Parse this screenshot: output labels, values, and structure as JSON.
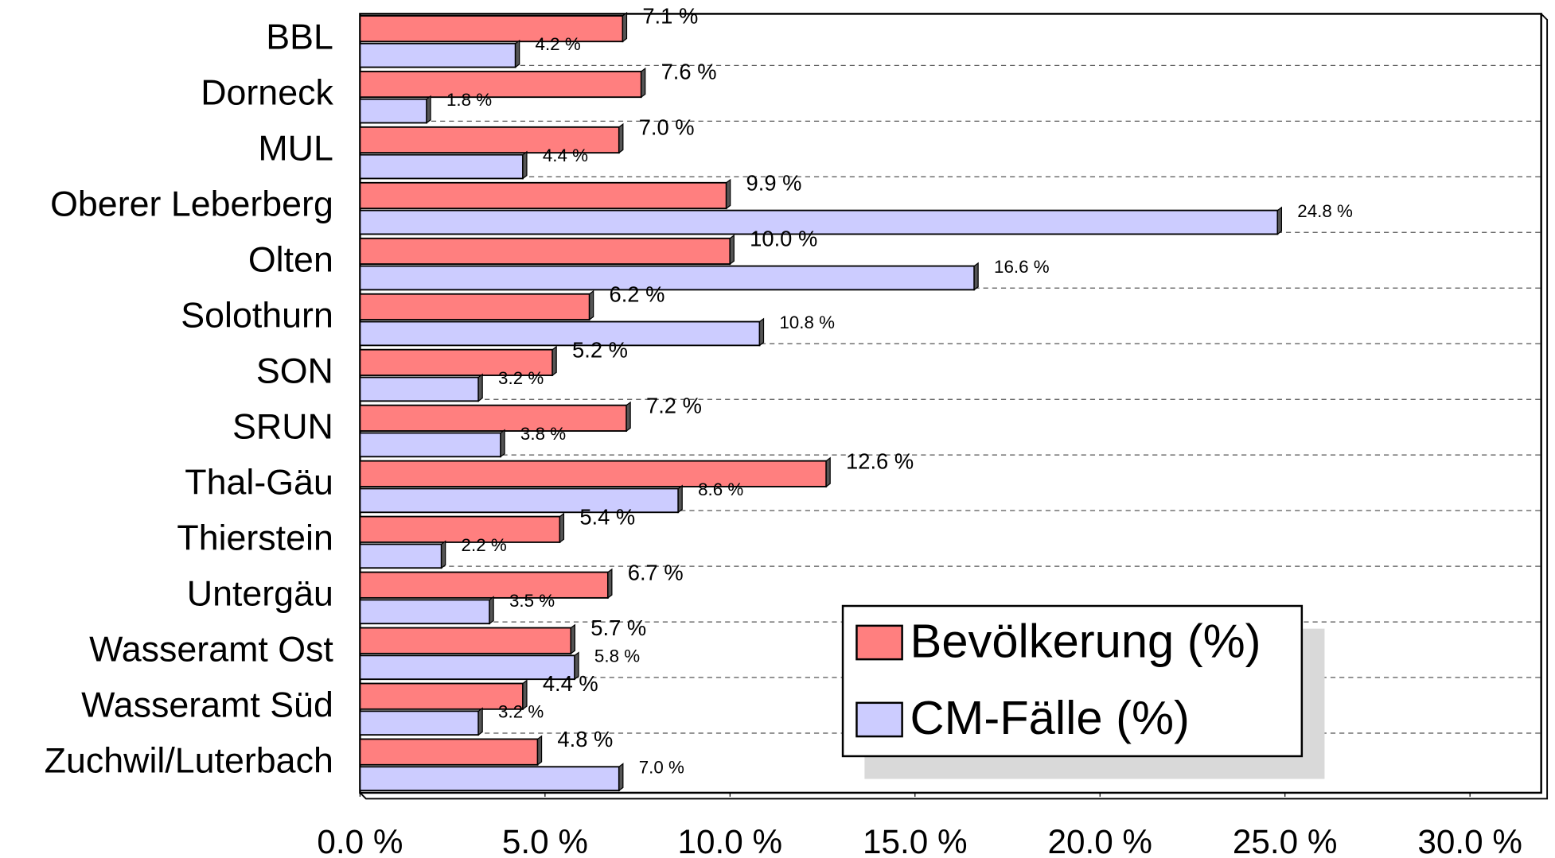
{
  "chart_data": {
    "type": "hbar",
    "categories": [
      "BBL",
      "Dorneck",
      "MUL",
      "Oberer Leberberg",
      "Olten",
      "Solothurn",
      "SON",
      "SRUN",
      "Thal-Gäu",
      "Thierstein",
      "Untergäu",
      "Wasseramt Ost",
      "Wasseramt Süd",
      "Zuchwil/Luterbach"
    ],
    "series": [
      {
        "name": "Bevölkerung (%)",
        "color": "#ff7f7f",
        "values": [
          7.1,
          7.6,
          7.0,
          9.9,
          10.0,
          6.2,
          5.2,
          7.2,
          12.6,
          5.4,
          6.7,
          5.7,
          4.4,
          4.8
        ],
        "value_labels": [
          "7.1 %",
          "7.6 %",
          "7.0 %",
          "9.9 %",
          "10.0 %",
          "6.2 %",
          "5.2 %",
          "7.2 %",
          "12.6 %",
          "5.4 %",
          "6.7 %",
          "5.7 %",
          "4.4 %",
          "4.8 %"
        ]
      },
      {
        "name": "CM-Fälle (%)",
        "color": "#ccccff",
        "values": [
          4.2,
          1.8,
          4.4,
          24.8,
          16.6,
          10.8,
          3.2,
          3.8,
          8.6,
          2.2,
          3.5,
          5.8,
          3.2,
          7.0
        ],
        "value_labels": [
          "4.2 %",
          "1.8 %",
          "4.4 %",
          "24.8 %",
          "16.6 %",
          "10.8 %",
          "3.2 %",
          "3.8 %",
          "8.6 %",
          "2.2 %",
          "3.5 %",
          "5.8 %",
          "3.2 %",
          "7.0 %"
        ]
      }
    ],
    "xlim": [
      0,
      30
    ],
    "xticks": [
      {
        "value": 0,
        "label": "0.0 %"
      },
      {
        "value": 5,
        "label": "5.0 %"
      },
      {
        "value": 10,
        "label": "10.0 %"
      },
      {
        "value": 15,
        "label": "15.0 %"
      },
      {
        "value": 20,
        "label": "20.0 %"
      },
      {
        "value": 25,
        "label": "25.0 %"
      },
      {
        "value": 30,
        "label": "30.0 %"
      }
    ],
    "legend": "lower right"
  }
}
